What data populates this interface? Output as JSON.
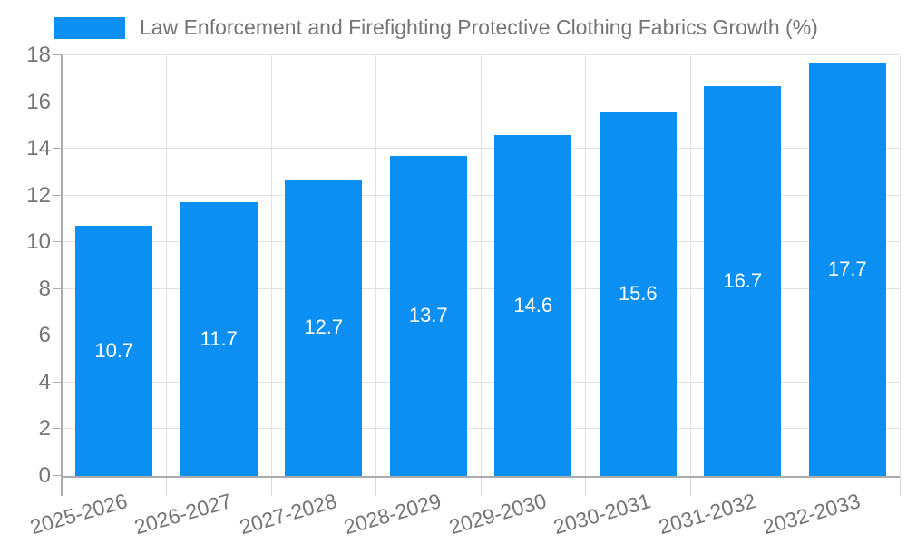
{
  "legend": {
    "label": "Law Enforcement and Firefighting Protective Clothing Fabrics Growth (%)"
  },
  "chart_data": {
    "type": "bar",
    "title": "Law Enforcement and Firefighting Protective Clothing Fabrics Growth (%)",
    "categories": [
      "2025-2026",
      "2026-2027",
      "2027-2028",
      "2028-2029",
      "2029-2030",
      "2030-2031",
      "2031-2032",
      "2032-2033"
    ],
    "values": [
      10.7,
      11.7,
      12.7,
      13.7,
      14.6,
      15.6,
      16.7,
      17.7
    ],
    "value_labels": [
      "10.7",
      "11.7",
      "12.7",
      "13.7",
      "14.6",
      "15.6",
      "16.7",
      "17.7"
    ],
    "xlabel": "",
    "ylabel": "",
    "ylim": [
      0,
      18
    ],
    "ytick_step": 2,
    "grid": true,
    "legend_position": "top-left",
    "colors": {
      "bar": "#0b8ff2",
      "value_label": "#ffffff",
      "axis_text": "#757575",
      "gridline": "#e2e2e2",
      "axis_line": "#ababab",
      "minor_tick": "#d6d6d6",
      "background": "#ffffff"
    }
  }
}
